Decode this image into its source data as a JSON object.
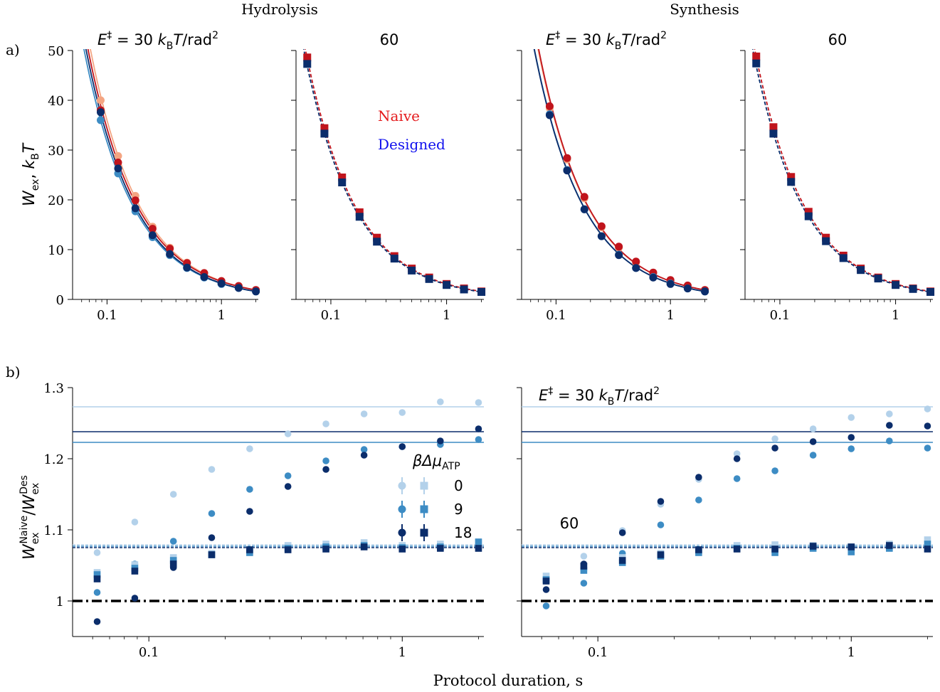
{
  "figure": {
    "column_titles": [
      "Hydrolysis",
      "Synthesis"
    ],
    "panel_labels": [
      "a)",
      "b)"
    ],
    "xlabel": "Protocol duration, s",
    "ylabel_a": "W_ex, k_B T",
    "ylabel_b": "W_ex^Naive / W_ex^Des",
    "barrier_text": "E‡ = 30 kBT/rad²",
    "barrier_60": "60",
    "legend_ab": {
      "naive": "Naive",
      "designed": "Designed",
      "naive_color": "#e41a1c",
      "designed_color": "#1010ee"
    },
    "legend_b": {
      "title": "βΔμ_ATP",
      "entries": [
        "0",
        "9",
        "18"
      ]
    }
  },
  "colors": {
    "red_light": "#f4a582",
    "red_mid": "#e8492e",
    "red_dark": "#c0141c",
    "blue_light": "#b3d1ea",
    "blue_mid": "#3d8cc4",
    "blue_dark": "#0b2d6b",
    "blue_line": "#2b7bba"
  },
  "chart_data": [
    {
      "id": "a-hydrolysis-30",
      "type": "scatter",
      "title": "E‡ = 30 kBT/rad²",
      "xscale": "log",
      "xlim": [
        0.05,
        2.1
      ],
      "ylim": [
        0,
        50
      ],
      "xticks": [
        0.1,
        1
      ],
      "yticks": [
        0,
        10,
        20,
        30,
        40,
        50
      ],
      "x": [
        0.088,
        0.125,
        0.177,
        0.25,
        0.354,
        0.5,
        0.707,
        1.0,
        1.414,
        2.0
      ],
      "series": [
        {
          "group": "naive",
          "shade": "light",
          "marker": "circle",
          "values": [
            40.0,
            28.8,
            20.8,
            14.6,
            10.4,
            7.4,
            5.3,
            3.7,
            2.7,
            1.9
          ]
        },
        {
          "group": "naive",
          "shade": "dark",
          "marker": "circle",
          "values": [
            38.0,
            27.5,
            19.9,
            14.2,
            10.2,
            7.3,
            5.3,
            3.7,
            2.7,
            1.9
          ]
        },
        {
          "group": "designed",
          "shade": "mid",
          "marker": "circle",
          "values": [
            36.0,
            25.3,
            17.7,
            12.5,
            8.9,
            6.3,
            4.4,
            3.1,
            2.3,
            1.6
          ]
        },
        {
          "group": "designed",
          "shade": "dark",
          "marker": "circle",
          "values": [
            37.6,
            26.3,
            18.3,
            12.9,
            9.1,
            6.4,
            4.5,
            3.2,
            2.3,
            1.6
          ]
        }
      ]
    },
    {
      "id": "a-hydrolysis-60",
      "type": "scatter",
      "title": "60",
      "xscale": "log",
      "xlim": [
        0.05,
        2.1
      ],
      "ylim": [
        0,
        50
      ],
      "xticks": [
        0.1,
        1
      ],
      "yticks": [
        0,
        10,
        20,
        30,
        40,
        50
      ],
      "x": [
        0.0625,
        0.088,
        0.125,
        0.177,
        0.25,
        0.354,
        0.5,
        0.707,
        1.0,
        1.414,
        2.0
      ],
      "series": [
        {
          "group": "naive",
          "shade": "dark",
          "marker": "square",
          "values": [
            48.6,
            34.4,
            24.5,
            17.5,
            12.4,
            8.7,
            6.2,
            4.4,
            3.1,
            2.2,
            1.6
          ]
        },
        {
          "group": "designed",
          "shade": "dark",
          "marker": "square",
          "values": [
            47.3,
            33.3,
            23.5,
            16.6,
            11.6,
            8.2,
            5.8,
            4.1,
            2.9,
            2.0,
            1.5
          ]
        }
      ]
    },
    {
      "id": "a-synthesis-30",
      "type": "scatter",
      "title": "E‡ = 30 kBT/rad²",
      "xscale": "log",
      "xlim": [
        0.05,
        2.1
      ],
      "ylim": [
        0,
        50
      ],
      "xticks": [
        0.1,
        1
      ],
      "yticks": [
        0,
        10,
        20,
        30,
        40,
        50
      ],
      "x": [
        0.088,
        0.125,
        0.177,
        0.25,
        0.354,
        0.5,
        0.707,
        1.0,
        1.414,
        2.0
      ],
      "series": [
        {
          "group": "naive",
          "shade": "light",
          "marker": "circle",
          "values": [
            38.4,
            28.1,
            20.3,
            14.5,
            10.4,
            7.4,
            5.3,
            3.8,
            2.7,
            1.9
          ]
        },
        {
          "group": "naive",
          "shade": "dark",
          "marker": "circle",
          "values": [
            38.8,
            28.4,
            20.6,
            14.7,
            10.6,
            7.6,
            5.4,
            3.9,
            2.8,
            1.9
          ]
        },
        {
          "group": "designed",
          "shade": "mid",
          "marker": "circle",
          "values": [
            37.2,
            26.0,
            18.1,
            12.7,
            9.0,
            6.3,
            4.5,
            3.2,
            2.2,
            1.6
          ]
        },
        {
          "group": "designed",
          "shade": "dark",
          "marker": "circle",
          "values": [
            37.0,
            25.9,
            18.1,
            12.7,
            8.9,
            6.3,
            4.4,
            3.1,
            2.2,
            1.6
          ]
        }
      ]
    },
    {
      "id": "a-synthesis-60",
      "type": "scatter",
      "title": "60",
      "xscale": "log",
      "xlim": [
        0.05,
        2.1
      ],
      "ylim": [
        0,
        50
      ],
      "xticks": [
        0.1,
        1
      ],
      "yticks": [
        0,
        10,
        20,
        30,
        40,
        50
      ],
      "x": [
        0.0625,
        0.088,
        0.125,
        0.177,
        0.25,
        0.354,
        0.5,
        0.707,
        1.0,
        1.414,
        2.0
      ],
      "series": [
        {
          "group": "naive",
          "shade": "dark",
          "marker": "square",
          "values": [
            48.8,
            34.6,
            24.6,
            17.6,
            12.4,
            8.8,
            6.2,
            4.4,
            3.1,
            2.2,
            1.6
          ]
        },
        {
          "group": "designed",
          "shade": "dark",
          "marker": "square",
          "values": [
            47.4,
            33.3,
            23.6,
            16.7,
            11.7,
            8.3,
            5.9,
            4.2,
            2.9,
            2.1,
            1.5
          ]
        }
      ]
    },
    {
      "id": "b-hydrolysis",
      "type": "scatter",
      "xscale": "log",
      "xlim": [
        0.05,
        2.1
      ],
      "ylim": [
        0.95,
        1.3
      ],
      "xticks": [
        0.1,
        1
      ],
      "yticks": [
        1.0,
        1.1,
        1.2,
        1.3
      ],
      "ytick_labels": [
        "1",
        "1.1",
        "1.2",
        "1.3"
      ],
      "x": [
        0.0625,
        0.088,
        0.125,
        0.177,
        0.25,
        0.354,
        0.5,
        0.707,
        1.0,
        1.414,
        2.0
      ],
      "reference_line": 1.0,
      "hlines_30": [
        {
          "shade": "light",
          "y": 1.273
        },
        {
          "shade": "dark",
          "y": 1.238
        },
        {
          "shade": "mid",
          "y": 1.223
        }
      ],
      "hlines_60": [
        {
          "shade": "light",
          "y": 1.079
        },
        {
          "shade": "mid",
          "y": 1.077
        },
        {
          "shade": "dark",
          "y": 1.075
        }
      ],
      "series": [
        {
          "atp": "0",
          "shade": "light",
          "marker": "circle",
          "values": [
            1.068,
            1.111,
            1.15,
            1.185,
            1.214,
            1.235,
            1.249,
            1.263,
            1.265,
            1.28,
            1.279
          ]
        },
        {
          "atp": "9",
          "shade": "mid",
          "marker": "circle",
          "values": [
            1.012,
            1.052,
            1.084,
            1.123,
            1.157,
            1.176,
            1.197,
            1.213,
            1.217,
            1.22,
            1.227
          ]
        },
        {
          "atp": "18",
          "shade": "dark",
          "marker": "circle",
          "values": [
            0.971,
            1.004,
            1.047,
            1.089,
            1.126,
            1.161,
            1.185,
            1.205,
            1.217,
            1.225,
            1.242
          ]
        },
        {
          "atp": "0",
          "shade": "light",
          "marker": "square",
          "values": [
            1.04,
            1.051,
            1.061,
            1.067,
            1.071,
            1.078,
            1.08,
            1.082,
            1.078,
            1.08,
            1.082
          ]
        },
        {
          "atp": "9",
          "shade": "mid",
          "marker": "square",
          "values": [
            1.037,
            1.046,
            1.057,
            1.065,
            1.068,
            1.074,
            1.076,
            1.078,
            1.075,
            1.076,
            1.083
          ]
        },
        {
          "atp": "18",
          "shade": "dark",
          "marker": "square",
          "values": [
            1.031,
            1.042,
            1.052,
            1.065,
            1.072,
            1.072,
            1.073,
            1.076,
            1.073,
            1.074,
            1.074
          ]
        }
      ]
    },
    {
      "id": "b-synthesis",
      "type": "scatter",
      "title": "E‡ = 30 kBT/rad²",
      "annotation": "60",
      "xscale": "log",
      "xlim": [
        0.05,
        2.1
      ],
      "ylim": [
        0.95,
        1.3
      ],
      "xticks": [
        0.1,
        1
      ],
      "yticks": [
        1.0,
        1.1,
        1.2,
        1.3
      ],
      "x": [
        0.0625,
        0.088,
        0.125,
        0.177,
        0.25,
        0.354,
        0.5,
        0.707,
        1.0,
        1.414,
        2.0
      ],
      "reference_line": 1.0,
      "hlines_30": [
        {
          "shade": "light",
          "y": 1.273
        },
        {
          "shade": "dark",
          "y": 1.238
        },
        {
          "shade": "mid",
          "y": 1.223
        }
      ],
      "hlines_60": [
        {
          "shade": "light",
          "y": 1.079
        },
        {
          "shade": "mid",
          "y": 1.077
        },
        {
          "shade": "dark",
          "y": 1.075
        }
      ],
      "series": [
        {
          "atp": "0",
          "shade": "light",
          "marker": "circle",
          "values": [
            1.034,
            1.063,
            1.099,
            1.136,
            1.171,
            1.207,
            1.228,
            1.242,
            1.258,
            1.263,
            1.27
          ]
        },
        {
          "atp": "9",
          "shade": "mid",
          "marker": "circle",
          "values": [
            0.993,
            1.025,
            1.067,
            1.107,
            1.142,
            1.172,
            1.183,
            1.205,
            1.214,
            1.225,
            1.215
          ]
        },
        {
          "atp": "18",
          "shade": "dark",
          "marker": "circle",
          "values": [
            1.016,
            1.052,
            1.096,
            1.14,
            1.174,
            1.2,
            1.215,
            1.224,
            1.23,
            1.247,
            1.246
          ]
        },
        {
          "atp": "0",
          "shade": "light",
          "marker": "square",
          "values": [
            1.035,
            1.047,
            1.061,
            1.067,
            1.071,
            1.078,
            1.079,
            1.078,
            1.076,
            1.08,
            1.086
          ]
        },
        {
          "atp": "9",
          "shade": "mid",
          "marker": "square",
          "values": [
            1.03,
            1.043,
            1.054,
            1.063,
            1.068,
            1.074,
            1.068,
            1.074,
            1.069,
            1.074,
            1.08
          ]
        },
        {
          "atp": "18",
          "shade": "dark",
          "marker": "square",
          "values": [
            1.028,
            1.049,
            1.057,
            1.065,
            1.072,
            1.073,
            1.073,
            1.077,
            1.076,
            1.078,
            1.073
          ]
        }
      ]
    }
  ]
}
